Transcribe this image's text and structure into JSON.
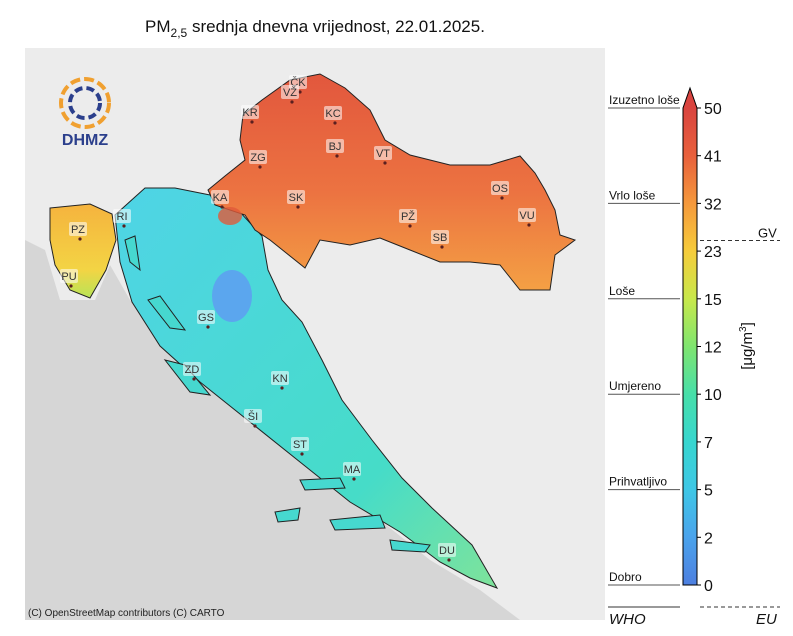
{
  "header": {
    "title_main": "PM",
    "title_sub": "2,5",
    "title_rest": " srednja dnevna vrijednost, 22.01.2025."
  },
  "map": {
    "logo": "DHMZ",
    "attribution": "(C) OpenStreetMap contributors (C) CARTO",
    "cities": [
      "ČK",
      "VŽ",
      "KR",
      "KC",
      "BJ",
      "ZG",
      "VT",
      "KA",
      "SK",
      "OS",
      "PŽ",
      "VU",
      "SB",
      "RI",
      "PZ",
      "PU",
      "GS",
      "ZD",
      "KN",
      "ŠI",
      "ST",
      "MA",
      "DU"
    ]
  },
  "colorbar": {
    "label_pre": "[μg/m",
    "label_sup": "3",
    "label_post": "]",
    "extend": "max",
    "ticks": [
      0,
      2,
      5,
      7,
      10,
      12,
      15,
      23,
      32,
      41,
      50
    ],
    "colors": [
      "#4d7fe0",
      "#4aa3ec",
      "#3ec7e6",
      "#37d6cf",
      "#47dfa9",
      "#7fe56f",
      "#c8e84a",
      "#f6cc3b",
      "#f5993c",
      "#e8603c",
      "#d9443f"
    ],
    "who_levels": [
      {
        "label": "Dobro",
        "value": 0
      },
      {
        "label": "Prihvatljivo",
        "value": 5
      },
      {
        "label": "Umjereno",
        "value": 10
      },
      {
        "label": "Loše",
        "value": 15
      },
      {
        "label": "Vrlo loše",
        "value": 32
      },
      {
        "label": "Izuzetno loše",
        "value": 50
      }
    ],
    "who_label": "WHO",
    "eu_label": "EU",
    "gv": {
      "label": "GV",
      "value": 25
    }
  }
}
